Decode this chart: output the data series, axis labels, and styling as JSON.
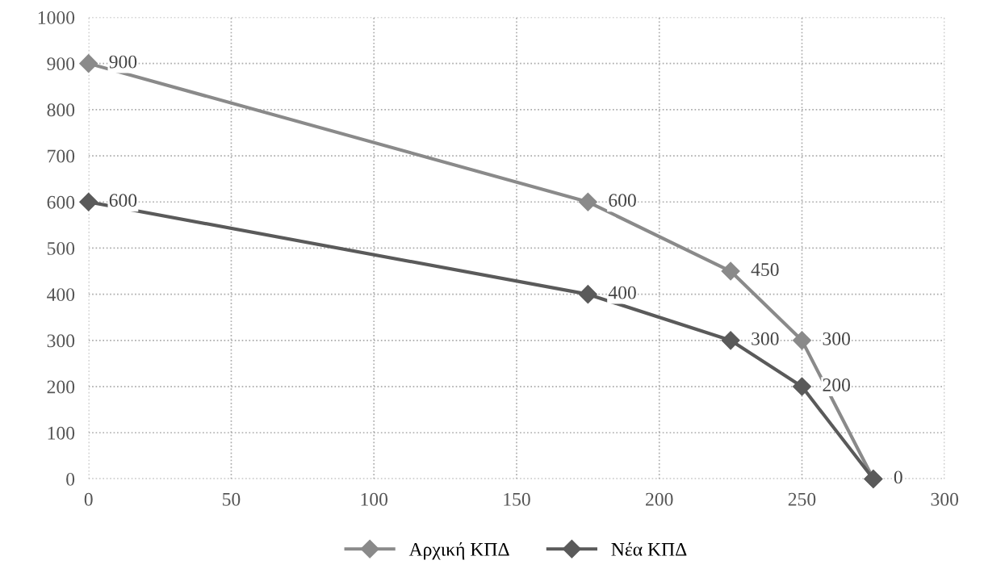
{
  "chart_data": {
    "type": "line",
    "series": [
      {
        "name": "Αρχική ΚΠΔ",
        "color": "#8a8a8a",
        "x": [
          0,
          175,
          225,
          250,
          275
        ],
        "values": [
          900,
          600,
          450,
          300,
          0
        ],
        "value_labels": [
          "900",
          "600",
          "450",
          "300",
          "0"
        ]
      },
      {
        "name": "Νέα ΚΠΔ",
        "color": "#5a5a5a",
        "x": [
          0,
          175,
          225,
          250,
          275
        ],
        "values": [
          600,
          400,
          300,
          200,
          0
        ],
        "value_labels": [
          "600",
          "400",
          "300",
          "200",
          null
        ]
      }
    ],
    "xlim": [
      0,
      300
    ],
    "xticks": [
      0,
      50,
      100,
      150,
      200,
      250,
      300
    ],
    "ylim": [
      0,
      1000
    ],
    "yticks": [
      0,
      100,
      200,
      300,
      400,
      500,
      600,
      700,
      800,
      900,
      1000
    ],
    "grid": true,
    "legend": "bottom",
    "marker": "diamond",
    "line_style": "solid"
  }
}
